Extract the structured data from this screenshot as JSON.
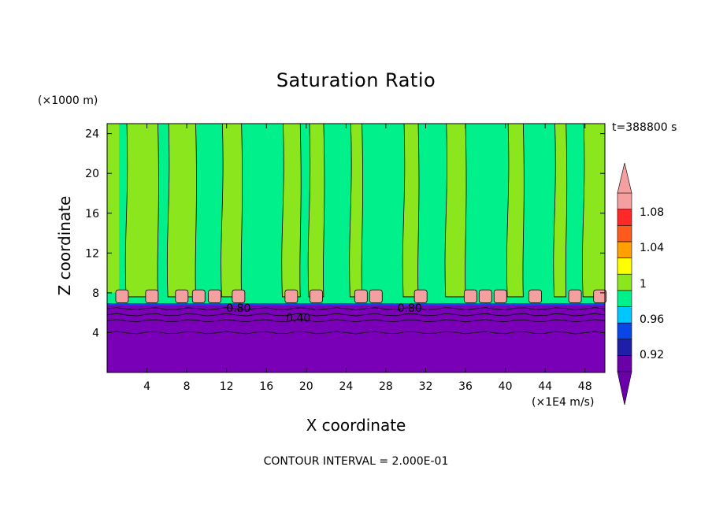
{
  "chart_data": {
    "type": "heatmap",
    "title": "Saturation Ratio",
    "xlabel": "X coordinate",
    "ylabel": "Z coordinate",
    "x_unit": "(×1E4 m/s)",
    "y_unit": "(×1000 m)",
    "time_label": "t=388800 s",
    "footer": "CONTOUR INTERVAL = 2.000E-01",
    "xlim": [
      0,
      50
    ],
    "ylim": [
      0,
      25
    ],
    "x_ticks": [
      "4",
      "8",
      "12",
      "16",
      "20",
      "24",
      "28",
      "32",
      "36",
      "40",
      "44",
      "48"
    ],
    "y_ticks": [
      "4",
      "8",
      "12",
      "16",
      "20",
      "24"
    ],
    "contour_labels": [
      {
        "text": "0.80",
        "x": 13.2,
        "y": 6.5
      },
      {
        "text": "0.40",
        "x": 19.2,
        "y": 5.5
      },
      {
        "text": "0.80",
        "x": 30.4,
        "y": 6.5
      }
    ],
    "colorbar": {
      "levels": [
        0.92,
        0.96,
        1,
        1.04,
        1.08
      ],
      "labels": [
        "0.92",
        "0.96",
        "1",
        "1.04",
        "1.08"
      ],
      "colors": [
        "#6a00a8",
        "#1e1ea8",
        "#0a46e6",
        "#00c8ff",
        "#00f08c",
        "#8ce61e",
        "#ffff00",
        "#ffa000",
        "#ff5a1e",
        "#ff2828",
        "#f4a0a0"
      ]
    },
    "regions": {
      "lower_layer_color": "#7a00b8",
      "lower_layer_top": 6.8,
      "mid_layer_color": "#00f08c",
      "upper_layer_color": "#8ce61e",
      "cloud_color": "#f4a0a0"
    },
    "moist_bands": [
      {
        "x": 3.5,
        "w": 3.2
      },
      {
        "x": 7.5,
        "w": 2.8
      },
      {
        "x": 12.5,
        "w": 2.0
      },
      {
        "x": 18.5,
        "w": 1.8
      },
      {
        "x": 21.0,
        "w": 1.5
      },
      {
        "x": 25.0,
        "w": 1.2
      },
      {
        "x": 30.5,
        "w": 1.5
      },
      {
        "x": 35.0,
        "w": 2.0
      },
      {
        "x": 41.0,
        "w": 1.6
      },
      {
        "x": 45.5,
        "w": 1.2
      },
      {
        "x": 48.5,
        "w": 1.4
      }
    ],
    "cloud_cells": [
      1.5,
      4.5,
      7.5,
      9.2,
      10.8,
      13.2,
      18.5,
      21.0,
      25.5,
      27.0,
      31.5,
      36.5,
      38.0,
      39.5,
      43.0,
      47.0,
      49.5
    ]
  }
}
